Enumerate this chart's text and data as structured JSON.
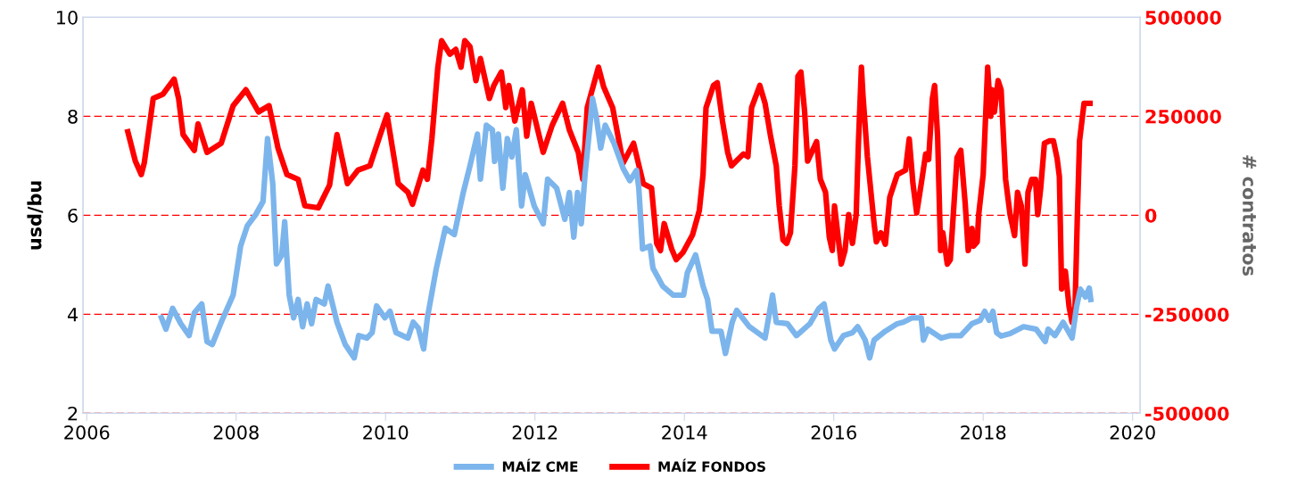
{
  "chart_data": {
    "type": "line",
    "ylabel": "usd/bu",
    "y2label": "# contratos",
    "xlim": [
      2005.95,
      2020.1
    ],
    "xticks": [
      2006,
      2008,
      2010,
      2012,
      2014,
      2016,
      2018,
      2020
    ],
    "ylim": [
      2,
      10
    ],
    "yticks": [
      2,
      4,
      6,
      8,
      10
    ],
    "y2lim": [
      -500000,
      500000
    ],
    "y2ticks": [
      -500000,
      -250000,
      0,
      250000,
      500000
    ],
    "grid": "y",
    "legend": "bottom",
    "line_style": "solid",
    "marker": "none",
    "series": [
      {
        "name": "MAÍZ CME",
        "color": "#7cb5ec",
        "axis": "y",
        "x": [
          2007.0,
          2007.06,
          2007.15,
          2007.26,
          2007.37,
          2007.44,
          2007.54,
          2007.61,
          2007.68,
          2007.8,
          2007.96,
          2008.06,
          2008.15,
          2008.26,
          2008.36,
          2008.42,
          2008.49,
          2008.54,
          2008.61,
          2008.65,
          2008.71,
          2008.77,
          2008.83,
          2008.89,
          2008.95,
          2009.01,
          2009.07,
          2009.18,
          2009.23,
          2009.35,
          2009.46,
          2009.58,
          2009.64,
          2009.75,
          2009.82,
          2009.88,
          2009.99,
          2010.06,
          2010.14,
          2010.3,
          2010.37,
          2010.44,
          2010.51,
          2010.56,
          2010.68,
          2010.8,
          2010.92,
          2011.04,
          2011.13,
          2011.23,
          2011.27,
          2011.35,
          2011.43,
          2011.46,
          2011.51,
          2011.57,
          2011.63,
          2011.69,
          2011.75,
          2011.82,
          2011.87,
          2011.99,
          2012.11,
          2012.17,
          2012.29,
          2012.4,
          2012.46,
          2012.52,
          2012.57,
          2012.62,
          2012.67,
          2012.73,
          2012.77,
          2012.82,
          2012.88,
          2012.94,
          2013.06,
          2013.18,
          2013.27,
          2013.36,
          2013.39,
          2013.44,
          2013.54,
          2013.58,
          2013.71,
          2013.85,
          2013.99,
          2014.04,
          2014.15,
          2014.25,
          2014.31,
          2014.37,
          2014.49,
          2014.55,
          2014.64,
          2014.7,
          2014.87,
          2015.08,
          2015.18,
          2015.23,
          2015.38,
          2015.5,
          2015.68,
          2015.8,
          2015.87,
          2015.96,
          2016.01,
          2016.13,
          2016.25,
          2016.32,
          2016.42,
          2016.48,
          2016.54,
          2016.69,
          2016.85,
          2016.93,
          2017.05,
          2017.17,
          2017.2,
          2017.26,
          2017.44,
          2017.56,
          2017.7,
          2017.85,
          2017.96,
          2018.02,
          2018.08,
          2018.13,
          2018.18,
          2018.24,
          2018.36,
          2018.54,
          2018.71,
          2018.83,
          2018.87,
          2018.96,
          2019.07,
          2019.19,
          2019.25,
          2019.3,
          2019.37,
          2019.42,
          2019.44
        ],
        "values": [
          3.93,
          3.7,
          4.12,
          3.81,
          3.57,
          4.03,
          4.21,
          3.45,
          3.39,
          3.84,
          4.39,
          5.38,
          5.79,
          6.01,
          6.28,
          7.55,
          6.64,
          5.02,
          5.2,
          5.87,
          4.39,
          3.93,
          4.3,
          3.75,
          4.21,
          3.81,
          4.3,
          4.21,
          4.57,
          3.84,
          3.39,
          3.12,
          3.57,
          3.52,
          3.63,
          4.17,
          3.93,
          4.06,
          3.63,
          3.52,
          3.84,
          3.72,
          3.3,
          3.93,
          4.93,
          5.74,
          5.61,
          6.46,
          7.0,
          7.64,
          6.73,
          7.82,
          7.73,
          7.09,
          7.64,
          6.55,
          7.55,
          7.18,
          7.73,
          6.19,
          6.82,
          6.19,
          5.83,
          6.73,
          6.55,
          5.92,
          6.46,
          5.56,
          6.46,
          5.83,
          6.82,
          7.73,
          8.36,
          8.0,
          7.36,
          7.82,
          7.45,
          6.95,
          6.7,
          6.91,
          6.55,
          5.32,
          5.38,
          4.93,
          4.57,
          4.39,
          4.39,
          4.84,
          5.2,
          4.57,
          4.3,
          3.66,
          3.66,
          3.21,
          3.84,
          4.08,
          3.75,
          3.52,
          4.39,
          3.84,
          3.81,
          3.57,
          3.81,
          4.12,
          4.21,
          3.48,
          3.3,
          3.57,
          3.63,
          3.75,
          3.48,
          3.12,
          3.48,
          3.66,
          3.81,
          3.84,
          3.93,
          3.93,
          3.48,
          3.7,
          3.52,
          3.57,
          3.57,
          3.81,
          3.88,
          4.06,
          3.88,
          4.06,
          3.63,
          3.56,
          3.61,
          3.75,
          3.7,
          3.45,
          3.7,
          3.57,
          3.84,
          3.52,
          4.15,
          4.51,
          4.35,
          4.53,
          4.3
        ]
      },
      {
        "name": "MAÍZ FONDOS",
        "color": "#ff0000",
        "axis": "y2",
        "x": [
          2006.55,
          2006.65,
          2006.73,
          2006.77,
          2006.89,
          2007.02,
          2007.17,
          2007.23,
          2007.29,
          2007.44,
          2007.49,
          2007.61,
          2007.8,
          2007.96,
          2008.13,
          2008.3,
          2008.44,
          2008.56,
          2008.68,
          2008.83,
          2008.92,
          2009.1,
          2009.25,
          2009.35,
          2009.49,
          2009.63,
          2009.79,
          2009.93,
          2010.02,
          2010.17,
          2010.3,
          2010.36,
          2010.5,
          2010.56,
          2010.62,
          2010.7,
          2010.75,
          2010.86,
          2010.94,
          2011.01,
          2011.06,
          2011.13,
          2011.21,
          2011.27,
          2011.39,
          2011.45,
          2011.55,
          2011.61,
          2011.65,
          2011.73,
          2011.83,
          2011.89,
          2011.95,
          2012.11,
          2012.23,
          2012.37,
          2012.46,
          2012.58,
          2012.64,
          2012.7,
          2012.85,
          2012.92,
          2013.04,
          2013.18,
          2013.32,
          2013.45,
          2013.56,
          2013.63,
          2013.68,
          2013.73,
          2013.83,
          2013.89,
          2013.98,
          2014.11,
          2014.2,
          2014.25,
          2014.29,
          2014.39,
          2014.44,
          2014.51,
          2014.58,
          2014.63,
          2014.79,
          2014.85,
          2014.9,
          2015.01,
          2015.08,
          2015.15,
          2015.23,
          2015.27,
          2015.32,
          2015.37,
          2015.42,
          2015.48,
          2015.52,
          2015.56,
          2015.61,
          2015.65,
          2015.77,
          2015.82,
          2015.89,
          2015.94,
          2015.98,
          2016.01,
          2016.1,
          2016.15,
          2016.2,
          2016.25,
          2016.3,
          2016.33,
          2016.37,
          2016.39,
          2016.45,
          2016.54,
          2016.57,
          2016.63,
          2016.69,
          2016.75,
          2016.85,
          2016.96,
          2017.01,
          2017.06,
          2017.11,
          2017.18,
          2017.23,
          2017.27,
          2017.32,
          2017.35,
          2017.39,
          2017.43,
          2017.46,
          2017.52,
          2017.56,
          2017.6,
          2017.65,
          2017.7,
          2017.76,
          2017.8,
          2017.85,
          2017.87,
          2017.92,
          2017.94,
          2018.0,
          2018.06,
          2018.1,
          2018.12,
          2018.15,
          2018.2,
          2018.24,
          2018.3,
          2018.36,
          2018.42,
          2018.46,
          2018.51,
          2018.56,
          2018.6,
          2018.65,
          2018.7,
          2018.73,
          2018.77,
          2018.82,
          2018.89,
          2018.94,
          2018.99,
          2019.02,
          2019.05,
          2019.1,
          2019.15,
          2019.19,
          2019.23,
          2019.26,
          2019.29,
          2019.35,
          2019.43
        ],
        "values": [
          211000,
          137000,
          103000,
          132000,
          295000,
          306000,
          344000,
          295000,
          204000,
          164000,
          231000,
          159000,
          182000,
          277000,
          317000,
          261000,
          277000,
          170000,
          103000,
          91000,
          24000,
          19000,
          76000,
          204000,
          80000,
          114000,
          125000,
          204000,
          254000,
          80000,
          58000,
          28000,
          114000,
          91000,
          193000,
          374000,
          441000,
          407000,
          419000,
          374000,
          441000,
          426000,
          340000,
          396000,
          295000,
          328000,
          362000,
          272000,
          328000,
          238000,
          317000,
          200000,
          283000,
          159000,
          227000,
          283000,
          216000,
          159000,
          91000,
          272000,
          374000,
          324000,
          272000,
          132000,
          182000,
          80000,
          69000,
          -71000,
          -89000,
          -21000,
          -85000,
          -112000,
          -94000,
          -49000,
          12000,
          103000,
          272000,
          328000,
          335000,
          238000,
          159000,
          125000,
          155000,
          148000,
          272000,
          328000,
          283000,
          204000,
          125000,
          24000,
          -62000,
          -71000,
          -44000,
          125000,
          351000,
          362000,
          261000,
          137000,
          186000,
          91000,
          58000,
          -55000,
          -89000,
          24000,
          -123000,
          -89000,
          2000,
          -71000,
          2000,
          182000,
          374000,
          306000,
          148000,
          -21000,
          -67000,
          -44000,
          -73000,
          46000,
          103000,
          114000,
          193000,
          80000,
          6000,
          91000,
          155000,
          141000,
          295000,
          328000,
          200000,
          -89000,
          -44000,
          -123000,
          -112000,
          2000,
          146000,
          164000,
          28000,
          -89000,
          -33000,
          -78000,
          -67000,
          2000,
          103000,
          374000,
          250000,
          317000,
          261000,
          340000,
          317000,
          91000,
          2000,
          -51000,
          58000,
          24000,
          -123000,
          58000,
          91000,
          91000,
          2000,
          69000,
          182000,
          188000,
          188000,
          143000,
          98000,
          -186000,
          -141000,
          -231000,
          -270000,
          -231000,
          -6000,
          188000,
          283000,
          283000
        ]
      }
    ]
  }
}
